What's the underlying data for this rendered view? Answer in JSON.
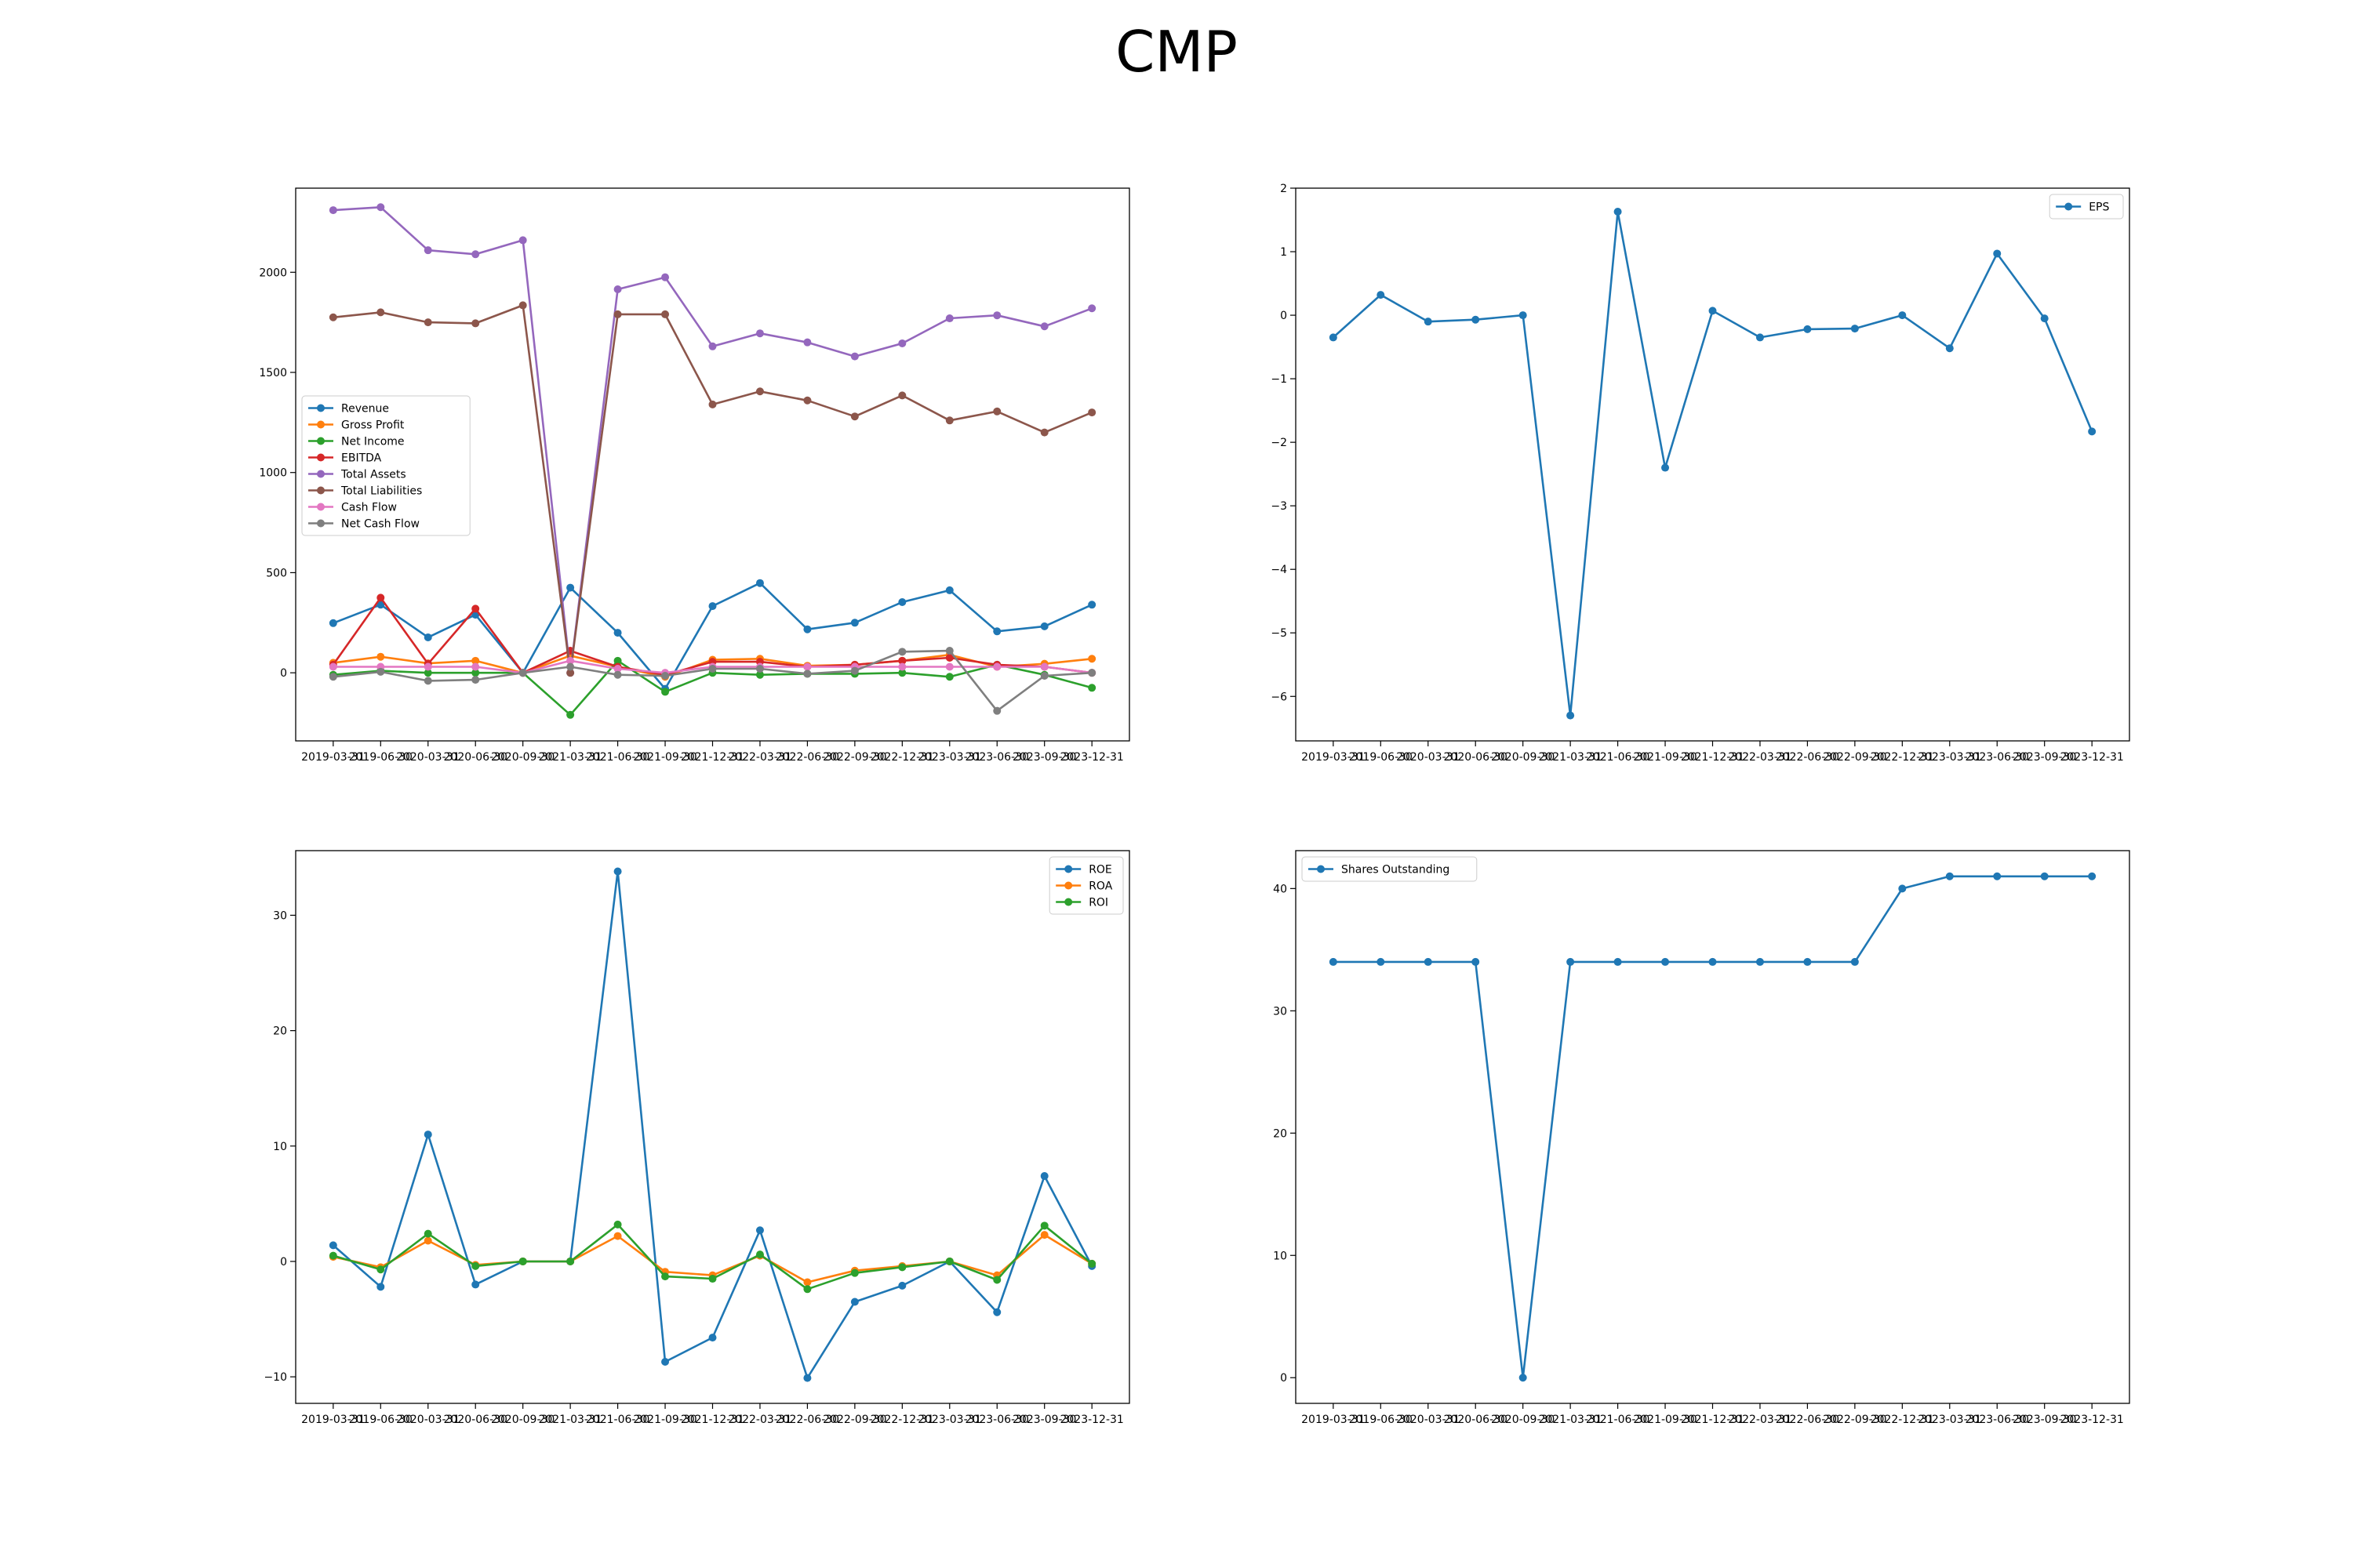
{
  "figure": {
    "title": "CMP"
  },
  "chart_data": [
    {
      "type": "line",
      "title": "",
      "xlabel": "",
      "ylabel": "",
      "x": [
        "2019-03-31",
        "2019-06-30",
        "2020-03-31",
        "2020-06-30",
        "2020-09-30",
        "2021-03-31",
        "2021-06-30",
        "2021-09-30",
        "2021-12-31",
        "2022-03-31",
        "2022-06-30",
        "2022-09-30",
        "2022-12-31",
        "2023-03-31",
        "2023-06-30",
        "2023-09-30",
        "2023-12-31"
      ],
      "ylim": [
        -340,
        2420
      ],
      "yticks": [
        0,
        500,
        1000,
        1500,
        2000
      ],
      "grid": false,
      "legend_position": "center-left",
      "series": [
        {
          "name": "Revenue",
          "color": "#1f77b4",
          "values": [
            248,
            340,
            177,
            290,
            0,
            425,
            200,
            -80,
            333,
            448,
            217,
            250,
            353,
            412,
            207,
            232,
            340
          ]
        },
        {
          "name": "Gross Profit",
          "color": "#ff7f0e",
          "values": [
            50,
            80,
            47,
            60,
            0,
            85,
            30,
            -20,
            65,
            70,
            35,
            40,
            60,
            90,
            30,
            45,
            70
          ]
        },
        {
          "name": "Net Income",
          "color": "#2ca02c",
          "values": [
            -10,
            10,
            0,
            0,
            0,
            -210,
            60,
            -95,
            0,
            -10,
            -5,
            -5,
            0,
            -20,
            40,
            -10,
            -75
          ]
        },
        {
          "name": "EBITDA",
          "color": "#d62728",
          "values": [
            40,
            375,
            45,
            320,
            0,
            110,
            30,
            -10,
            55,
            55,
            30,
            40,
            60,
            75,
            40,
            30,
            0
          ]
        },
        {
          "name": "Total Assets",
          "color": "#9467bd",
          "values": [
            2310,
            2325,
            2110,
            2090,
            2160,
            0,
            1915,
            1975,
            1630,
            1695,
            1650,
            1580,
            1645,
            1770,
            1785,
            1730,
            1820
          ]
        },
        {
          "name": "Total Liabilities",
          "color": "#8c564b",
          "values": [
            1775,
            1800,
            1750,
            1745,
            1835,
            0,
            1790,
            1790,
            1340,
            1405,
            1360,
            1280,
            1385,
            1260,
            1305,
            1200,
            1300
          ]
        },
        {
          "name": "Cash Flow",
          "color": "#e377c2",
          "values": [
            30,
            30,
            30,
            30,
            0,
            60,
            20,
            0,
            30,
            30,
            30,
            30,
            30,
            30,
            30,
            30,
            0
          ]
        },
        {
          "name": "Net Cash Flow",
          "color": "#7f7f7f",
          "values": [
            -20,
            5,
            -40,
            -35,
            0,
            30,
            -10,
            -15,
            20,
            20,
            -5,
            10,
            105,
            110,
            -190,
            -15,
            0
          ]
        }
      ]
    },
    {
      "type": "line",
      "title": "",
      "xlabel": "",
      "ylabel": "",
      "x": [
        "2019-03-31",
        "2019-06-30",
        "2020-03-31",
        "2020-06-30",
        "2020-09-30",
        "2021-03-31",
        "2021-06-30",
        "2021-09-30",
        "2021-12-31",
        "2022-03-31",
        "2022-06-30",
        "2022-09-30",
        "2022-12-31",
        "2023-03-31",
        "2023-06-30",
        "2023-09-30",
        "2023-12-31"
      ],
      "ylim": [
        -6.7,
        2.0
      ],
      "yticks": [
        -6,
        -5,
        -4,
        -3,
        -2,
        -1,
        0,
        1,
        2
      ],
      "grid": false,
      "legend_position": "top-right",
      "series": [
        {
          "name": "EPS",
          "color": "#1f77b4",
          "values": [
            -0.35,
            0.32,
            -0.1,
            -0.07,
            0.0,
            -6.3,
            1.63,
            -2.4,
            0.07,
            -0.35,
            -0.22,
            -0.21,
            0.0,
            -0.52,
            0.97,
            -0.05,
            -1.83
          ]
        }
      ]
    },
    {
      "type": "line",
      "title": "",
      "xlabel": "",
      "ylabel": "",
      "x": [
        "2019-03-31",
        "2019-06-30",
        "2020-03-31",
        "2020-06-30",
        "2020-09-30",
        "2021-03-31",
        "2021-06-30",
        "2021-09-30",
        "2021-12-31",
        "2022-03-31",
        "2022-06-30",
        "2022-09-30",
        "2022-12-31",
        "2023-03-31",
        "2023-06-30",
        "2023-09-30",
        "2023-12-31"
      ],
      "ylim": [
        -12.3,
        35.6
      ],
      "yticks": [
        -10,
        0,
        10,
        20,
        30
      ],
      "grid": false,
      "legend_position": "top-right",
      "series": [
        {
          "name": "ROE",
          "color": "#1f77b4",
          "values": [
            1.4,
            -2.2,
            11.0,
            -2.0,
            0.0,
            0.0,
            33.8,
            -8.7,
            -6.6,
            2.7,
            -10.1,
            -3.5,
            -2.1,
            0.0,
            -4.4,
            7.4,
            -0.4
          ]
        },
        {
          "name": "ROA",
          "color": "#ff7f0e",
          "values": [
            0.4,
            -0.5,
            1.8,
            -0.3,
            0.0,
            0.0,
            2.2,
            -0.9,
            -1.2,
            0.5,
            -1.8,
            -0.8,
            -0.4,
            0.0,
            -1.2,
            2.3,
            -0.2
          ]
        },
        {
          "name": "ROI",
          "color": "#2ca02c",
          "values": [
            0.5,
            -0.7,
            2.4,
            -0.4,
            0.0,
            0.0,
            3.2,
            -1.3,
            -1.5,
            0.6,
            -2.4,
            -1.0,
            -0.5,
            0.0,
            -1.6,
            3.1,
            -0.2
          ]
        }
      ]
    },
    {
      "type": "line",
      "title": "",
      "xlabel": "",
      "ylabel": "",
      "x": [
        "2019-03-31",
        "2019-06-30",
        "2020-03-31",
        "2020-06-30",
        "2020-09-30",
        "2021-03-31",
        "2021-06-30",
        "2021-09-30",
        "2021-12-31",
        "2022-03-31",
        "2022-06-30",
        "2022-09-30",
        "2022-12-31",
        "2023-03-31",
        "2023-06-30",
        "2023-09-30",
        "2023-12-31"
      ],
      "ylim": [
        -2.1,
        43.1
      ],
      "yticks": [
        0,
        10,
        20,
        30,
        40
      ],
      "grid": false,
      "legend_position": "top-left",
      "series": [
        {
          "name": "Shares Outstanding",
          "color": "#1f77b4",
          "values": [
            34,
            34,
            34,
            34,
            0,
            34,
            34,
            34,
            34,
            34,
            34,
            34,
            40,
            41,
            41,
            41,
            41
          ]
        }
      ]
    }
  ]
}
